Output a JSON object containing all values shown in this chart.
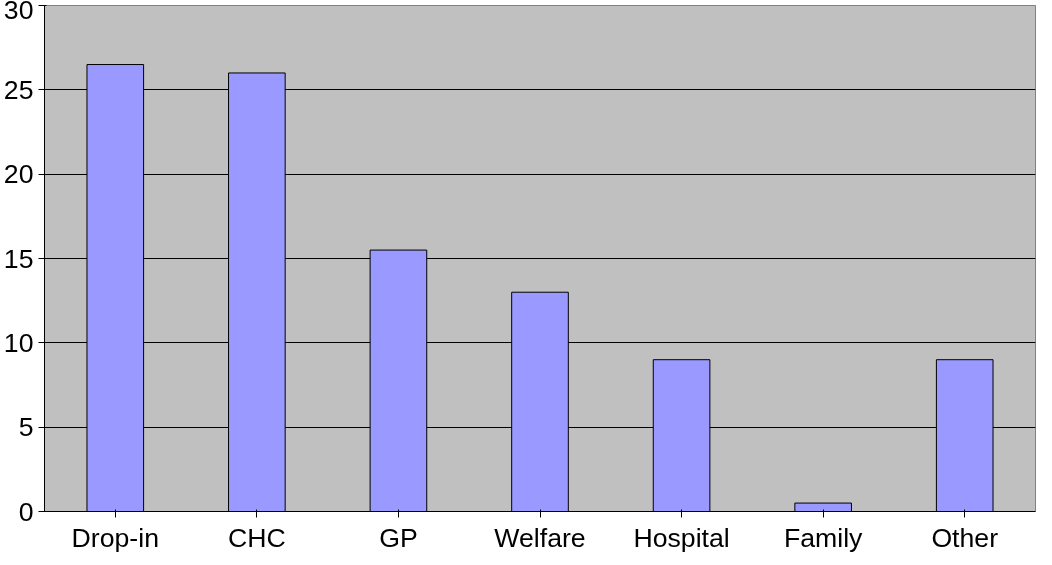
{
  "chart_data": {
    "type": "bar",
    "categories": [
      "Drop-in",
      "CHC",
      "GP",
      "Welfare",
      "Hospital",
      "Family",
      "Other"
    ],
    "values": [
      26.5,
      26,
      15.5,
      13,
      9,
      0.5,
      9
    ],
    "color": "#9999ff",
    "ylim": [
      0,
      30
    ],
    "yticks": [
      0,
      5,
      10,
      15,
      20,
      25,
      30
    ],
    "grid": "y"
  }
}
